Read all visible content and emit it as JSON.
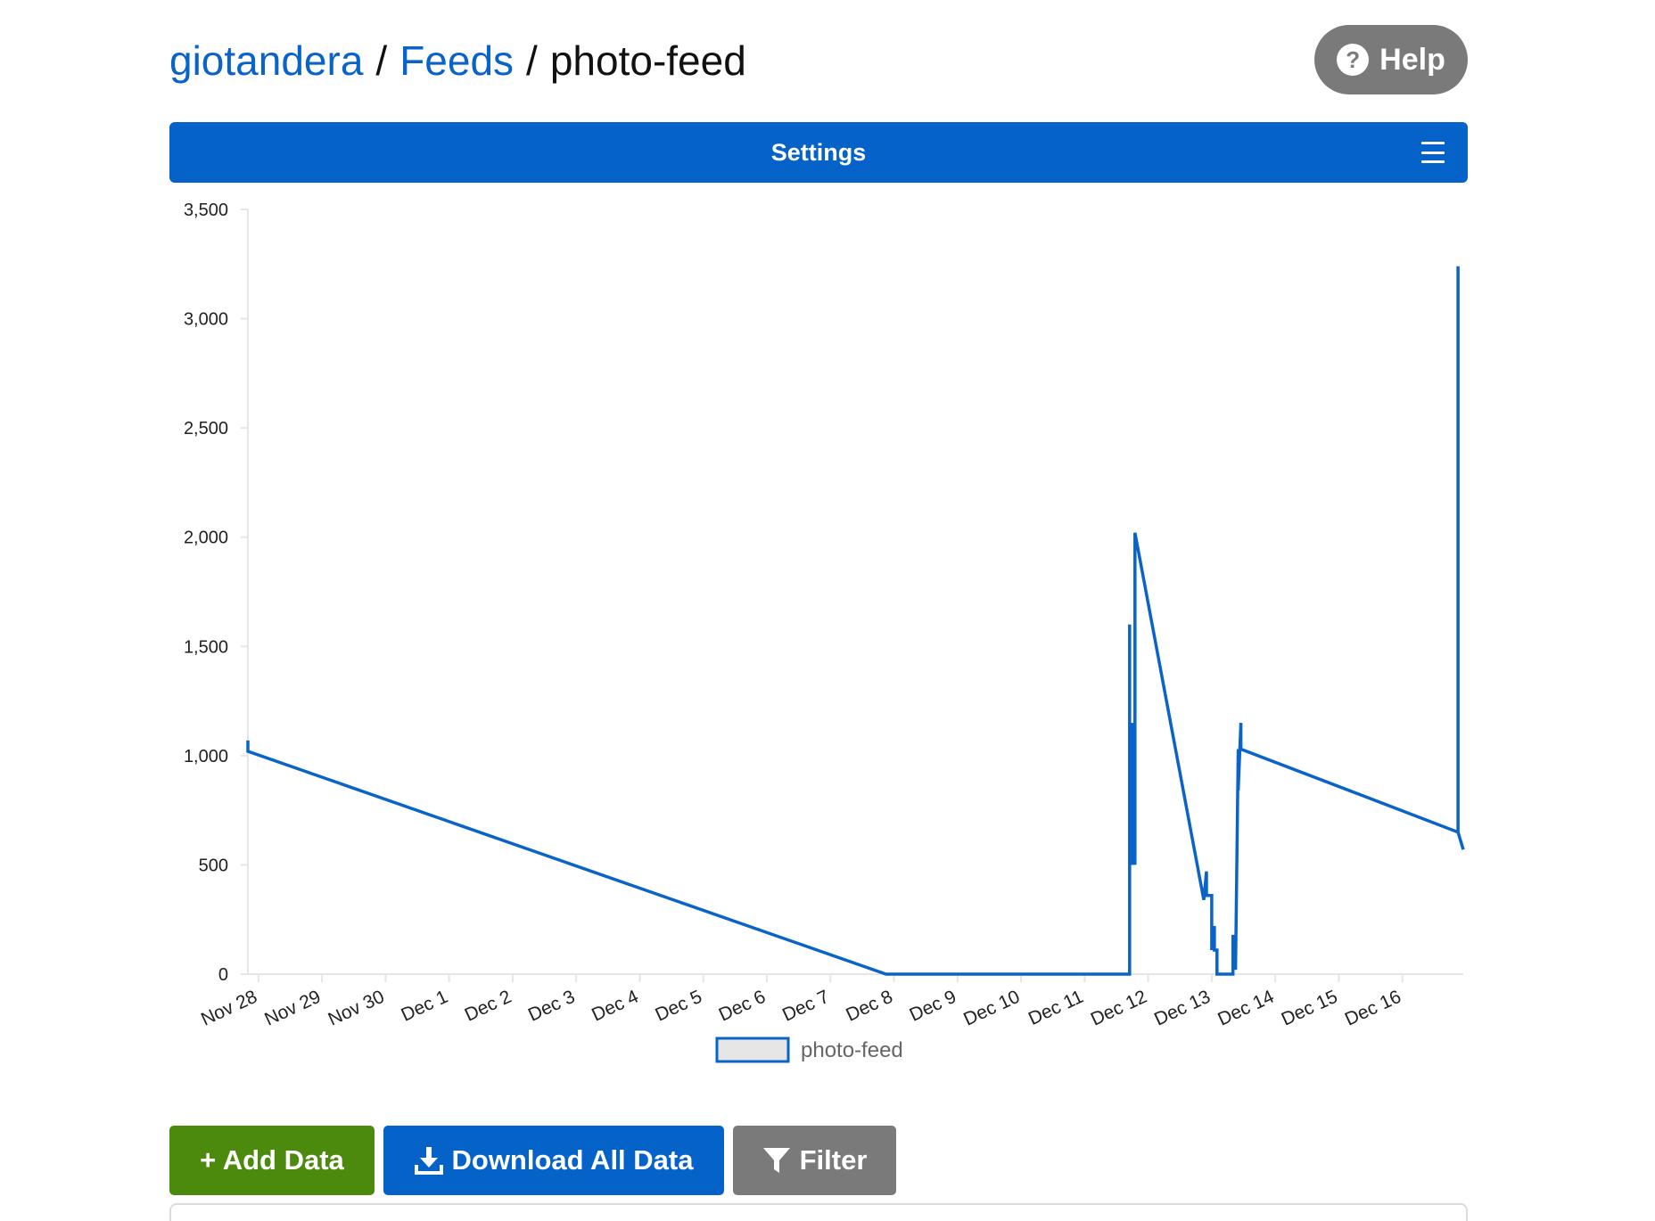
{
  "breadcrumb": {
    "user": "giotandera",
    "separator": "/",
    "feeds": "Feeds",
    "current": "photo-feed"
  },
  "help": {
    "label": "Help",
    "icon": "question-circle-icon"
  },
  "settings_bar": {
    "label": "Settings",
    "icon": "hamburger-menu-icon",
    "color": "#0562c8"
  },
  "actions": {
    "add_label": "+ Add Data",
    "download_label": "Download All Data",
    "filter_label": "Filter",
    "add_color": "#4c8a0e",
    "download_color": "#0562c8",
    "filter_color": "#7a7a7a"
  },
  "chart_data": {
    "type": "line",
    "title": "",
    "xlabel": "",
    "ylabel": "",
    "ylim": [
      0,
      3500
    ],
    "xlim": [
      "Nov 27 20:00",
      "Dec 16 23:00"
    ],
    "y_ticks": [
      "0",
      "500",
      "1,000",
      "1,500",
      "2,000",
      "2,500",
      "3,000",
      "3,500"
    ],
    "x_ticks": [
      "Nov 28",
      "Nov 29",
      "Nov 30",
      "Dec 1",
      "Dec 2",
      "Dec 3",
      "Dec 4",
      "Dec 5",
      "Dec 6",
      "Dec 7",
      "Dec 8",
      "Dec 9",
      "Dec 10",
      "Dec 11",
      "Dec 12",
      "Dec 13",
      "Dec 14",
      "Dec 15",
      "Dec 16"
    ],
    "legend_position": "bottom-center",
    "grid": false,
    "series": [
      {
        "name": "photo-feed",
        "color": "#0a63c9",
        "points": [
          [
            "Nov 27 20:00",
            1070
          ],
          [
            "Nov 27 20:00",
            1020
          ],
          [
            "Dec 7 21:00",
            0
          ],
          [
            "Dec 11 17:00",
            0
          ],
          [
            "Dec 11 17:00",
            1600
          ],
          [
            "Dec 11 17:00",
            600
          ],
          [
            "Dec 11 18:00",
            1150
          ],
          [
            "Dec 11 18:00",
            500
          ],
          [
            "Dec 11 19:00",
            830
          ],
          [
            "Dec 11 19:00",
            500
          ],
          [
            "Dec 11 19:00",
            2020
          ],
          [
            "Dec 12 21:00",
            340
          ],
          [
            "Dec 12 22:00",
            470
          ],
          [
            "Dec 12 22:00",
            360
          ],
          [
            "Dec 12 23:00",
            360
          ],
          [
            "Dec 13 00:00",
            360
          ],
          [
            "Dec 13 00:00",
            110
          ],
          [
            "Dec 13 01:00",
            220
          ],
          [
            "Dec 13 01:00",
            110
          ],
          [
            "Dec 13 02:00",
            110
          ],
          [
            "Dec 13 02:00",
            0
          ],
          [
            "Dec 13 08:00",
            0
          ],
          [
            "Dec 13 08:00",
            180
          ],
          [
            "Dec 13 09:00",
            20
          ],
          [
            "Dec 13 10:00",
            1030
          ],
          [
            "Dec 13 10:00",
            840
          ],
          [
            "Dec 13 11:00",
            1150
          ],
          [
            "Dec 13 11:00",
            1030
          ],
          [
            "Dec 16 21:00",
            650
          ],
          [
            "Dec 16 21:00",
            3240
          ],
          [
            "Dec 16 21:00",
            650
          ],
          [
            "Dec 16 23:00",
            570
          ]
        ]
      }
    ]
  }
}
